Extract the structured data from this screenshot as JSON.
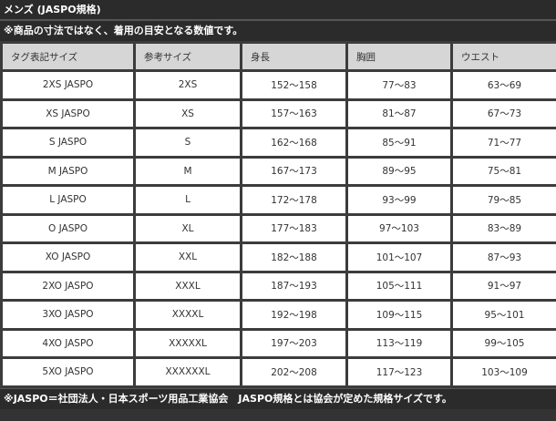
{
  "title": "メンズ (JASPO規格)",
  "note": "※商品の寸法ではなく、着用の目安となる数値です。",
  "headers": [
    "タグ表記サイズ",
    "参考サイズ",
    "身長",
    "胸囲",
    "ウエスト"
  ],
  "rows": [
    [
      "2XS JASPO",
      "2XS",
      "152〜158",
      "77〜83",
      "63〜69"
    ],
    [
      "XS JASPO",
      "XS",
      "157〜163",
      "81〜87",
      "67〜73"
    ],
    [
      "S JASPO",
      "S",
      "162〜168",
      "85〜91",
      "71〜77"
    ],
    [
      "M JASPO",
      "M",
      "167〜173",
      "89〜95",
      "75〜81"
    ],
    [
      "L JASPO",
      "L",
      "172〜178",
      "93〜99",
      "79〜85"
    ],
    [
      "O JASPO",
      "XL",
      "177〜183",
      "97〜103",
      "83〜89"
    ],
    [
      "XO JASPO",
      "XXL",
      "182〜188",
      "101〜107",
      "87〜93"
    ],
    [
      "2XO JASPO",
      "XXXL",
      "187〜193",
      "105〜111",
      "91〜97"
    ],
    [
      "3XO JASPO",
      "XXXXL",
      "192〜198",
      "109〜115",
      "95〜101"
    ],
    [
      "4XO JASPO",
      "XXXXXL",
      "197〜203",
      "113〜119",
      "99〜105"
    ],
    [
      "5XO JASPO",
      "XXXXXXL",
      "202〜208",
      "117〜123",
      "103〜109"
    ]
  ],
  "footer": "※JASPO＝社団法人・日本スポーツ用品工業協会　JASPO規格とは協会が定めた規格サイズです。"
}
